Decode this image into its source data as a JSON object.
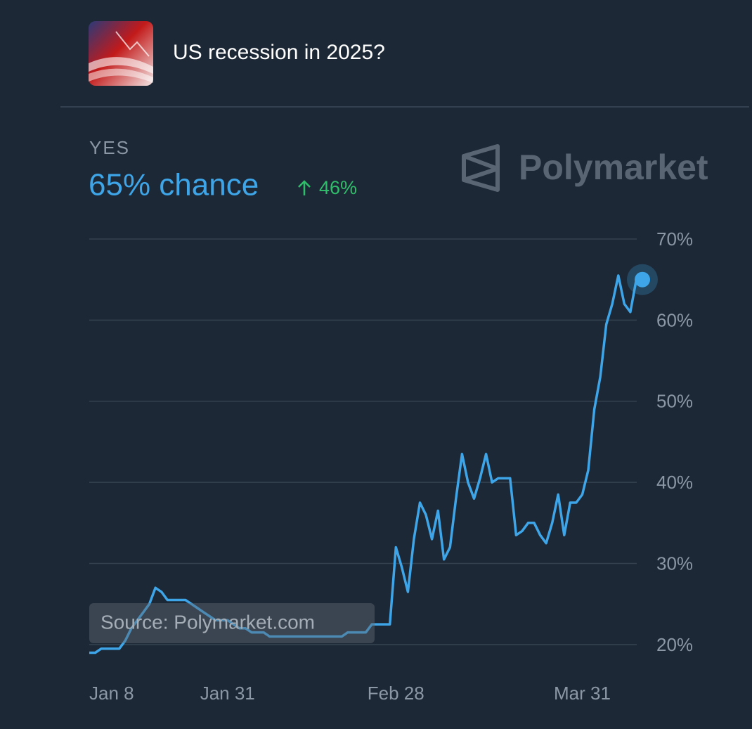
{
  "header": {
    "title": "US recession in 2025?"
  },
  "outcome": {
    "label": "YES",
    "chance": "65% chance",
    "change": "46%"
  },
  "brand": "Polymarket",
  "source": "Source: Polymarket.com",
  "chart_data": {
    "type": "line",
    "color": "#3ea6e8",
    "x": [
      "Jan 8",
      "Jan 9",
      "Jan 10",
      "Jan 11",
      "Jan 12",
      "Jan 13",
      "Jan 14",
      "Jan 15",
      "Jan 16",
      "Jan 17",
      "Jan 18",
      "Jan 19",
      "Jan 20",
      "Jan 21",
      "Jan 22",
      "Jan 23",
      "Jan 24",
      "Jan 25",
      "Jan 26",
      "Jan 27",
      "Jan 28",
      "Jan 29",
      "Jan 30",
      "Jan 31",
      "Feb 1",
      "Feb 2",
      "Feb 3",
      "Feb 4",
      "Feb 5",
      "Feb 6",
      "Feb 7",
      "Feb 8",
      "Feb 9",
      "Feb 10",
      "Feb 11",
      "Feb 12",
      "Feb 13",
      "Feb 14",
      "Feb 15",
      "Feb 16",
      "Feb 17",
      "Feb 18",
      "Feb 19",
      "Feb 20",
      "Feb 21",
      "Feb 22",
      "Feb 23",
      "Feb 24",
      "Feb 25",
      "Feb 26",
      "Feb 27",
      "Feb 28",
      "Mar 1",
      "Mar 2",
      "Mar 3",
      "Mar 4",
      "Mar 5",
      "Mar 6",
      "Mar 7",
      "Mar 8",
      "Mar 9",
      "Mar 10",
      "Mar 11",
      "Mar 12",
      "Mar 13",
      "Mar 14",
      "Mar 15",
      "Mar 16",
      "Mar 17",
      "Mar 18",
      "Mar 19",
      "Mar 20",
      "Mar 21",
      "Mar 22",
      "Mar 23",
      "Mar 24",
      "Mar 25",
      "Mar 26",
      "Mar 27",
      "Mar 28",
      "Mar 29",
      "Mar 30",
      "Mar 31",
      "Apr 1",
      "Apr 2",
      "Apr 3",
      "Apr 4",
      "Apr 5",
      "Apr 6",
      "Apr 7",
      "Apr 8",
      "Apr 9",
      "Apr 10"
    ],
    "values": [
      19,
      19,
      19.5,
      19.5,
      19.5,
      19.5,
      20.5,
      22,
      23,
      24,
      25,
      27,
      26.5,
      25.5,
      25.5,
      25.5,
      25.5,
      25,
      24.5,
      24,
      23.5,
      23,
      23,
      23,
      22.5,
      22,
      22,
      21.5,
      21.5,
      21.5,
      21,
      21,
      21,
      21,
      21,
      21,
      21,
      21,
      21,
      21,
      21,
      21,
      21,
      21.5,
      21.5,
      21.5,
      21.5,
      22.5,
      22.5,
      22.5,
      22.5,
      32,
      29.5,
      26.5,
      33,
      37.5,
      36,
      33,
      36.5,
      30.5,
      32,
      38,
      43.5,
      40,
      38,
      40.5,
      43.5,
      40,
      40.5,
      40.5,
      40.5,
      33.5,
      34,
      35,
      35,
      33.5,
      32.5,
      35,
      38.5,
      33.5,
      37.5,
      37.5,
      38.5,
      41.5,
      49,
      53,
      59.5,
      62,
      65.5,
      62,
      61,
      65,
      65
    ],
    "xlim": [
      "Jan 8",
      "Apr 10"
    ],
    "xticks": [
      "Jan 8",
      "Jan 31",
      "Feb 28",
      "Mar 31"
    ],
    "ylim": [
      18,
      70
    ],
    "yticks": [
      {
        "value": 20,
        "label": "20%"
      },
      {
        "value": 30,
        "label": "30%"
      },
      {
        "value": 40,
        "label": "40%"
      },
      {
        "value": 50,
        "label": "50%"
      },
      {
        "value": 60,
        "label": "60%"
      },
      {
        "value": 70,
        "label": "70%"
      }
    ],
    "grid": true
  }
}
